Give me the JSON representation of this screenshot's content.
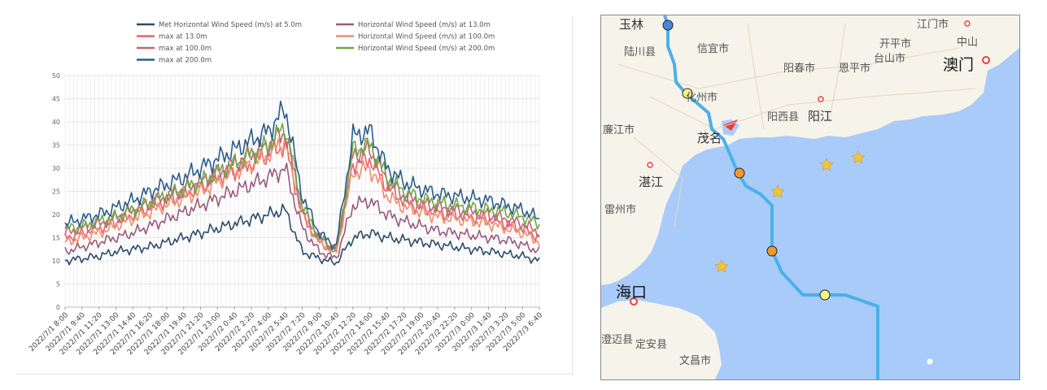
{
  "chart_data": {
    "type": "line",
    "yaxis": {
      "min": 0,
      "max": 50,
      "ticks": [
        "0",
        "5",
        "10",
        "15",
        "20",
        "25",
        "30",
        "35",
        "40",
        "45",
        "50"
      ]
    },
    "xaxis_labels": [
      "2022/7/1 8:00",
      "2022/7/1 9:40",
      "2022/7/1 11:20",
      "2022/7/1 13:00",
      "2022/7/1 14:40",
      "2022/7/1 16:20",
      "2022/7/1 18:00",
      "2022/7/1 19:40",
      "2022/7/1 21:20",
      "2022/7/1 23:00",
      "2022/7/2 0:40",
      "2022/7/2 2:20",
      "2022/7/2 4:00",
      "2022/7/2 5:40",
      "2022/7/2 7:20",
      "2022/7/2 9:00",
      "2022/7/2 10:40",
      "2022/7/2 12:20",
      "2022/7/2 14:00",
      "2022/7/2 15:40",
      "2022/7/2 17:20",
      "2022/7/2 19:00",
      "2022/7/2 20:40",
      "2022/7/2 22:20",
      "2022/7/3 0:00",
      "2022/7/3 1:40",
      "2022/7/3 3:20",
      "2022/7/3 5:00",
      "2022/7/3 6:40"
    ],
    "series": [
      {
        "name": "Met Horizontal Wind Speed (m/s) at 5.0m",
        "color": "#2c4b6e",
        "values": [
          10,
          10.5,
          11,
          12,
          12.5,
          13,
          14,
          15,
          16,
          17,
          18,
          19,
          20,
          21,
          12,
          10.5,
          9.5,
          15,
          16,
          15,
          14.5,
          14,
          13.5,
          13,
          12.5,
          12,
          11.5,
          11,
          10
        ]
      },
      {
        "name": "Horizontal Wind Speed (m/s) at 13.0m",
        "color": "#9a5a7a",
        "values": [
          12,
          13,
          14,
          15,
          16,
          17.5,
          19,
          20.5,
          22,
          23.5,
          25,
          26.5,
          28,
          30,
          17,
          12,
          10.5,
          22,
          23,
          20,
          18.5,
          17.5,
          16.5,
          16,
          15.5,
          15,
          14.5,
          13.5,
          12
        ]
      },
      {
        "name": "max at 13.0m",
        "color": "#e8626a",
        "values": [
          15,
          16,
          17,
          18.5,
          20,
          21.5,
          23,
          24.5,
          26,
          28,
          29.5,
          31,
          33,
          35,
          20,
          14,
          12,
          31,
          32,
          26,
          23,
          21.5,
          20.5,
          20,
          19.5,
          19,
          18,
          17,
          15
        ]
      },
      {
        "name": "Horizontal Wind Speed (m/s) at 100.0m",
        "color": "#f28c6f",
        "values": [
          14,
          15,
          16,
          17.5,
          19,
          20.5,
          22,
          23.5,
          25,
          27,
          29,
          31,
          33,
          36,
          20,
          14,
          12,
          29,
          30,
          24,
          21.5,
          20.5,
          19.5,
          19,
          18.5,
          18,
          17,
          16,
          14
        ]
      },
      {
        "name": "max at 100.0m",
        "color": "#c3657b",
        "values": [
          16,
          17,
          18,
          19.5,
          21,
          22.5,
          24,
          25.5,
          27,
          29,
          31,
          33,
          35,
          38,
          21,
          15,
          12.5,
          33,
          34,
          27.5,
          24,
          22.5,
          21.5,
          21,
          20.5,
          20,
          19,
          18,
          16
        ]
      },
      {
        "name": "Horizontal Wind Speed (m/s) at 200.0m",
        "color": "#6ea844",
        "values": [
          17,
          17.5,
          18.5,
          19.5,
          21,
          22.5,
          24,
          25.5,
          27,
          29,
          31,
          33,
          35,
          39,
          22,
          15,
          12,
          34,
          35,
          28,
          25,
          23.5,
          22.5,
          22,
          21.5,
          21,
          20.5,
          19.5,
          18
        ]
      },
      {
        "name": "max at 200.0m",
        "color": "#2a5d8a",
        "values": [
          18,
          19,
          20,
          21.5,
          23,
          25,
          26.5,
          28,
          30,
          32,
          34,
          36,
          38,
          43,
          24,
          16,
          13,
          37,
          38,
          30,
          27,
          25.5,
          24.5,
          24,
          23.5,
          23,
          22,
          21,
          19
        ]
      }
    ]
  },
  "map": {
    "cities": [
      {
        "name": "玉林",
        "cls": "mid"
      },
      {
        "name": "陆川县",
        "cls": ""
      },
      {
        "name": "信宜市",
        "cls": ""
      },
      {
        "name": "化州市",
        "cls": ""
      },
      {
        "name": "阳春市",
        "cls": ""
      },
      {
        "name": "恩平市",
        "cls": ""
      },
      {
        "name": "开平市",
        "cls": ""
      },
      {
        "name": "台山市",
        "cls": ""
      },
      {
        "name": "中山",
        "cls": ""
      },
      {
        "name": "澳门",
        "cls": "big"
      },
      {
        "name": "阳西县",
        "cls": ""
      },
      {
        "name": "阳江",
        "cls": "mid"
      },
      {
        "name": "廉江市",
        "cls": ""
      },
      {
        "name": "茂名",
        "cls": "mid"
      },
      {
        "name": "湛江",
        "cls": "mid"
      },
      {
        "name": "雷州市",
        "cls": ""
      },
      {
        "name": "海口",
        "cls": "big"
      },
      {
        "name": "澄迈县",
        "cls": ""
      },
      {
        "name": "定安县",
        "cls": ""
      },
      {
        "name": "文昌市",
        "cls": ""
      },
      {
        "name": "江门市",
        "cls": ""
      }
    ],
    "colors": {
      "sea": "#a9cbfa",
      "land": "#f6f3ea",
      "track": "#4ab0ea",
      "star": "#f5c33b"
    }
  }
}
